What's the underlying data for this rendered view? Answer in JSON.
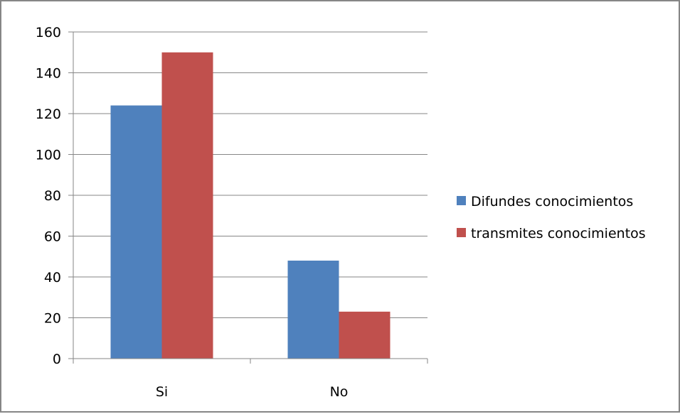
{
  "chart_data": {
    "type": "bar",
    "categories": [
      "Si",
      "No"
    ],
    "series": [
      {
        "name": "Difundes conocimientos",
        "values": [
          124,
          48
        ],
        "color": "#4f81bd"
      },
      {
        "name": "transmites conocimientos",
        "values": [
          150,
          23
        ],
        "color": "#c0504d"
      }
    ],
    "yticks": [
      "0",
      "20",
      "40",
      "60",
      "80",
      "100",
      "120",
      "140",
      "160"
    ],
    "ylim": [
      0,
      160
    ],
    "grid": true,
    "legend_position": "right"
  }
}
